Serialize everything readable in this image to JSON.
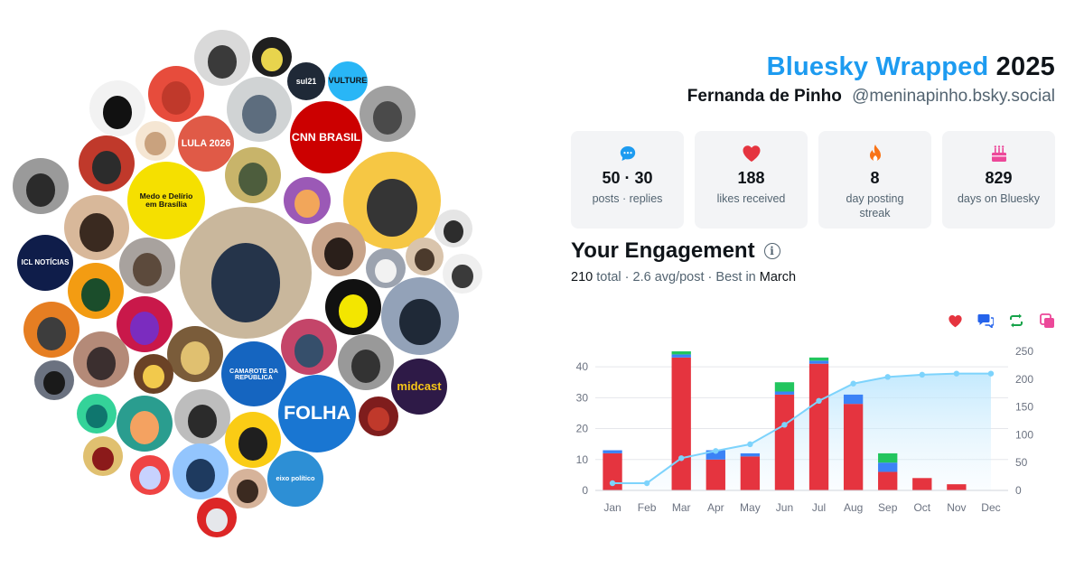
{
  "header": {
    "title_accent": "Bluesky Wrapped",
    "title_year": "2025",
    "display_name": "Fernanda de Pinho",
    "handle": "@meninapinho.bsky.social"
  },
  "stats": [
    {
      "icon": "speech-bubble-icon",
      "value": "50 · 30",
      "label": "posts · replies",
      "color": "#1d9bf0"
    },
    {
      "icon": "heart-icon",
      "value": "188",
      "label": "likes received",
      "color": "#e5343f"
    },
    {
      "icon": "flame-icon",
      "value": "8",
      "label": "day posting streak",
      "color": "#f97316"
    },
    {
      "icon": "cake-icon",
      "value": "829",
      "label": "days on Bluesky",
      "color": "#ec4899"
    }
  ],
  "engagement": {
    "title": "Your Engagement",
    "total_value": "210",
    "total_label": " total",
    "avg": " · 2.6 avg/post · Best in ",
    "best_month": "March"
  },
  "legend": [
    {
      "name": "likes",
      "icon": "heart-icon",
      "color": "#e5343f"
    },
    {
      "name": "replies",
      "icon": "reply-icon",
      "color": "#2563eb"
    },
    {
      "name": "reposts",
      "icon": "repost-icon",
      "color": "#16a34a"
    },
    {
      "name": "quotes",
      "icon": "quote-icon",
      "color": "#ec4899"
    }
  ],
  "chart_data": {
    "type": "bar",
    "stacked": true,
    "categories": [
      "Jan",
      "Feb",
      "Mar",
      "Apr",
      "May",
      "Jun",
      "Jul",
      "Aug",
      "Sep",
      "Oct",
      "Nov",
      "Dec"
    ],
    "series": [
      {
        "name": "likes",
        "color": "#e5343f",
        "values": [
          12,
          0,
          43,
          10,
          11,
          31,
          41,
          28,
          6,
          4,
          2,
          0
        ]
      },
      {
        "name": "replies",
        "color": "#3b82f6",
        "values": [
          1,
          0,
          1,
          3,
          1,
          1,
          1,
          3,
          3,
          0,
          0,
          0
        ]
      },
      {
        "name": "reposts",
        "color": "#22c55e",
        "values": [
          0,
          0,
          1,
          0,
          0,
          3,
          1,
          0,
          3,
          0,
          0,
          0
        ]
      }
    ],
    "cumulative": {
      "name": "cumulative",
      "color": "#7dd3fc",
      "values": [
        13,
        13,
        58,
        71,
        83,
        118,
        161,
        192,
        204,
        208,
        210,
        210
      ]
    },
    "y_left": {
      "ticks": [
        0,
        10,
        20,
        30,
        40
      ],
      "ylim": [
        0,
        45
      ]
    },
    "y_right": {
      "ticks": [
        0,
        50,
        100,
        150,
        200,
        250
      ],
      "ylim": [
        0,
        250
      ]
    }
  },
  "bubbles": [
    {
      "label": "",
      "color": "#3a3a3a",
      "ring": "#d9d9d9"
    },
    {
      "label": "",
      "color": "#e8d44d",
      "ring": "#1f1f1f"
    },
    {
      "label": "sul21",
      "color": "#1f2937",
      "text": "#ffffff"
    },
    {
      "label": "VULTURE",
      "color": "#29b6f6",
      "text": "#0f1419"
    },
    {
      "label": "",
      "color": "#111111",
      "ring": "#f2f2f2"
    },
    {
      "label": "",
      "color": "#c0392b",
      "ring": "#e74c3c"
    },
    {
      "label": "",
      "color": "#5d6d7e",
      "ring": "#d0d3d4"
    },
    {
      "label": "CNN BRASIL",
      "color": "#cc0000",
      "text": "#ffffff"
    },
    {
      "label": "",
      "color": "#4a4a4a",
      "ring": "#a0a0a0"
    },
    {
      "label": "",
      "color": "#c9a27e",
      "ring": "#f5e6d3"
    },
    {
      "label": "LULA 2026",
      "color": "#e05a47",
      "text": "#ffffff"
    },
    {
      "label": "",
      "color": "#2c2c2c",
      "ring": "#c0392b"
    },
    {
      "label": "Medo e Delírio em Brasília",
      "color": "#f5e000",
      "text": "#111111"
    },
    {
      "label": "",
      "color": "#4d5d3d",
      "ring": "#c8b46a"
    },
    {
      "label": "",
      "color": "#f2a65a",
      "ring": "#9b59b6"
    },
    {
      "label": "",
      "color": "#353535",
      "ring": "#f6c744"
    },
    {
      "label": "",
      "color": "#2d2d2d",
      "ring": "#e5e5e5"
    },
    {
      "label": "",
      "color": "#2b2b2b",
      "ring": "#9a9a9a"
    },
    {
      "label": "",
      "color": "#3a2a20",
      "ring": "#d8b89a"
    },
    {
      "label": "",
      "color": "#5c4a3c",
      "ring": "#a8a29e"
    },
    {
      "label": "",
      "color": "#25344a",
      "ring": "#c9b79c"
    },
    {
      "label": "",
      "color": "#2a1f1a",
      "ring": "#c8a48a"
    },
    {
      "label": "",
      "color": "#f2f2f2",
      "ring": "#9ca3af"
    },
    {
      "label": "",
      "color": "#4b3a2c",
      "ring": "#d9c4ac"
    },
    {
      "label": "",
      "color": "#3a3a3a",
      "ring": "#efefef"
    },
    {
      "label": "ICL NOTÍCIAS",
      "color": "#0f1d4a",
      "text": "#ffffff"
    },
    {
      "label": "",
      "color": "#1b4d2b",
      "ring": "#f39c12"
    },
    {
      "label": "",
      "color": "#7b2cbf",
      "ring": "#c9184a"
    },
    {
      "label": "",
      "color": "#f3e600",
      "ring": "#111111"
    },
    {
      "label": "",
      "color": "#1f2937",
      "ring": "#93a2b8"
    },
    {
      "label": "",
      "color": "#3d3d3d",
      "ring": "#e67e22"
    },
    {
      "label": "",
      "color": "#364f6b",
      "ring": "#c44569"
    },
    {
      "label": "",
      "color": "#e0c070",
      "ring": "#7a5c3a"
    },
    {
      "label": "",
      "color": "#333333",
      "ring": "#999999"
    },
    {
      "label": "CAMAROTE DA REPÚBLICA",
      "color": "#1565c0",
      "text": "#ffffff"
    },
    {
      "label": "",
      "color": "#f2c94c",
      "ring": "#6b4226"
    },
    {
      "label": "",
      "color": "#1a1a1a",
      "ring": "#6b7280"
    },
    {
      "label": "",
      "color": "#3b2f2f",
      "ring": "#b48a78"
    },
    {
      "label": "",
      "color": "#0f766e",
      "ring": "#34d399"
    },
    {
      "label": "",
      "color": "#f4a261",
      "ring": "#2a9d8f"
    },
    {
      "label": "",
      "color": "#2b2b2b",
      "ring": "#bdbdbd"
    },
    {
      "label": "FOLHA",
      "color": "#1976d2",
      "text": "#ffffff"
    },
    {
      "label": "midcast",
      "color": "#2e1a47",
      "text": "#f5c518"
    },
    {
      "label": "",
      "color": "#c0392b",
      "ring": "#7f1d1d"
    },
    {
      "label": "",
      "color": "#8b1a1a",
      "ring": "#e0c070"
    },
    {
      "label": "",
      "color": "#c7d2fe",
      "ring": "#ef4444"
    },
    {
      "label": "",
      "color": "#1e3a5f",
      "ring": "#93c5fd"
    },
    {
      "label": "",
      "color": "#1f1f1f",
      "ring": "#facc15"
    },
    {
      "label": "",
      "color": "#3b2a20",
      "ring": "#d6b39a"
    },
    {
      "label": "eixo político",
      "color": "#2d8fd5",
      "text": "#ffffff"
    },
    {
      "label": "",
      "color": "#e5e7eb",
      "ring": "#dc2626"
    },
    {
      "label": "",
      "color": "#2b2b2b",
      "ring": "#8b5cf6"
    }
  ]
}
